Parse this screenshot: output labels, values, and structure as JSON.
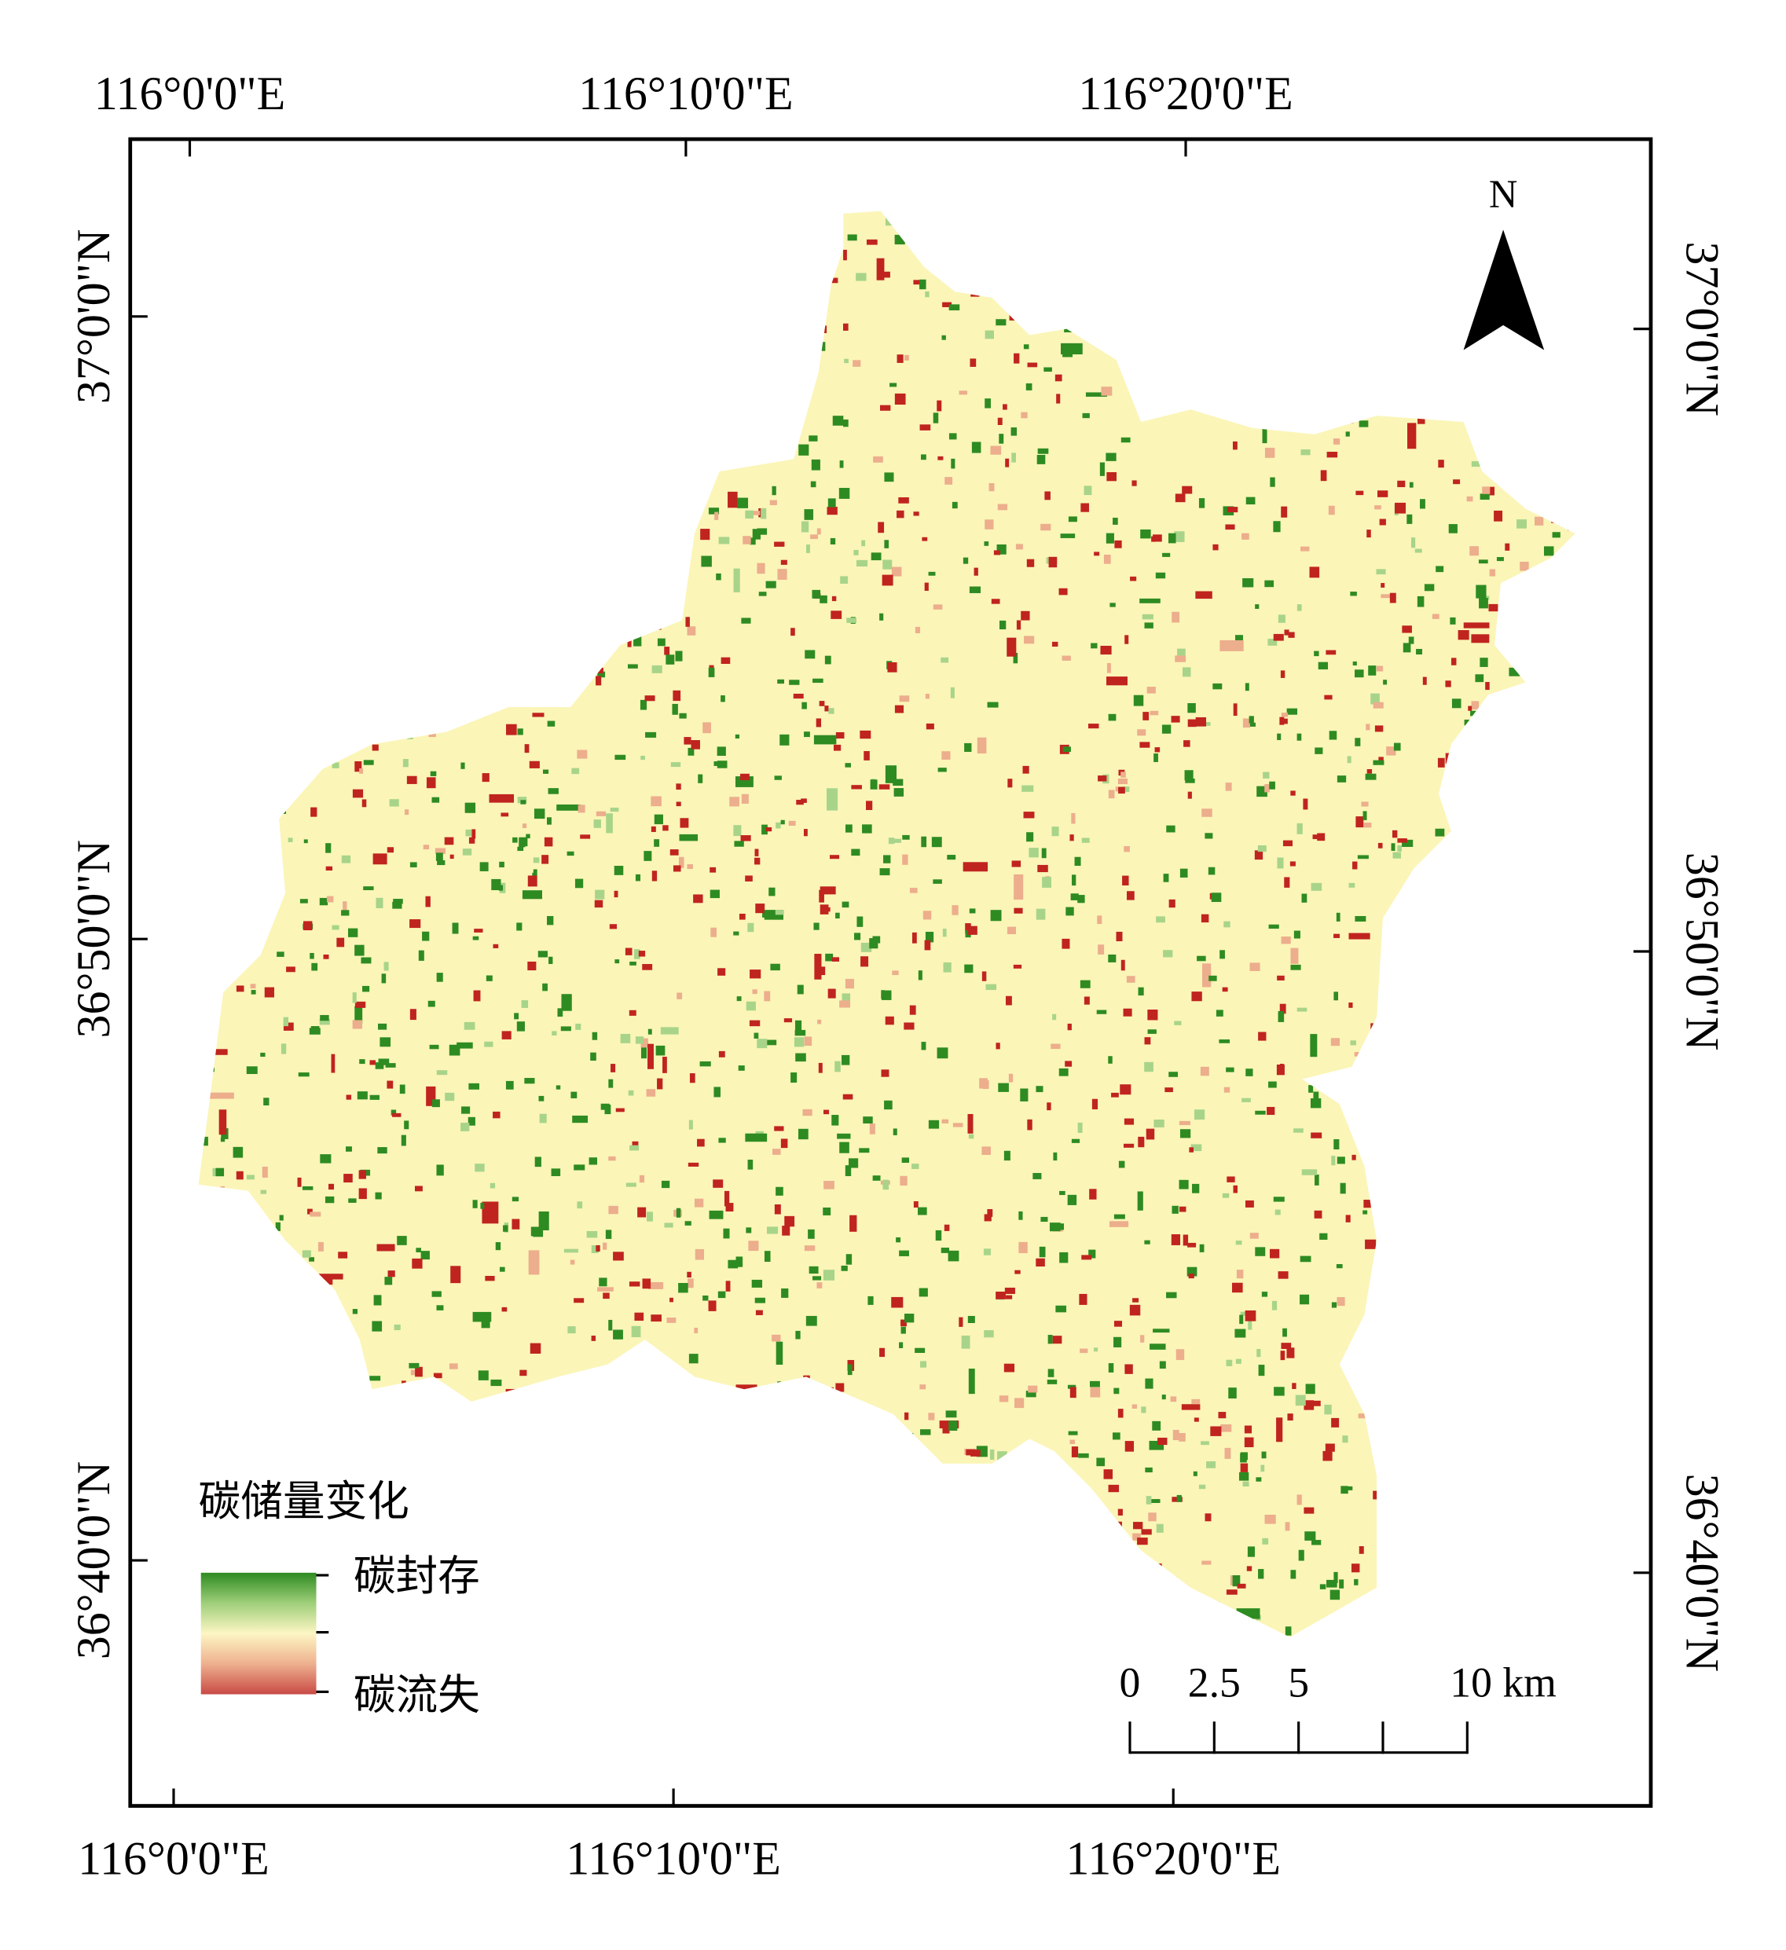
{
  "map": {
    "top_labels": [
      "116°0'0\"E",
      "116°10'0\"E",
      "116°20'0\"E"
    ],
    "bottom_labels": [
      "116°0'0\"E",
      "116°10'0\"E",
      "116°20'0\"E"
    ],
    "left_labels": [
      "37°0'0\"N",
      "36°50'0\"N",
      "36°40'0\"N"
    ],
    "right_labels": [
      "37°0'0\"N",
      "36°50'0\"N",
      "36°40'0\"N"
    ],
    "north": "N",
    "legend": {
      "title": "碳储量变化",
      "high": "碳封存",
      "low": "碳流失"
    },
    "scale_bar": {
      "labels": [
        "0",
        "2.5",
        "5",
        "10 km"
      ]
    }
  }
}
